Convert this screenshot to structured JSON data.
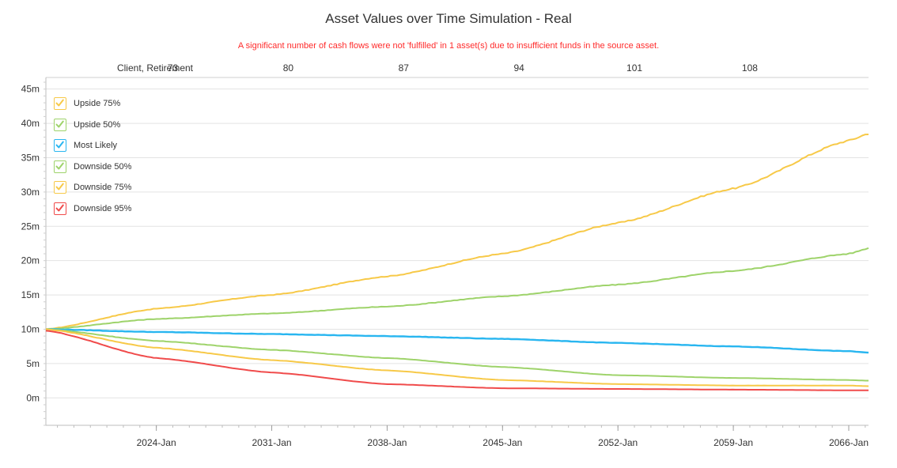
{
  "title": "Asset Values over Time Simulation - Real",
  "warning": "A significant number of cash flows were not 'fulfilled' in 1 asset(s) due to insufficient funds in the source asset.",
  "chart_data": {
    "type": "line",
    "top_axis": {
      "label": "Client, Retirement",
      "ticks": [
        {
          "year": 2025,
          "label": "73"
        },
        {
          "year": 2032,
          "label": "80"
        },
        {
          "year": 2039,
          "label": "87"
        },
        {
          "year": 2046,
          "label": "94"
        },
        {
          "year": 2053,
          "label": "101"
        },
        {
          "year": 2060,
          "label": "108"
        }
      ]
    },
    "x_ticks": [
      {
        "year": 2024,
        "label": "2024-Jan"
      },
      {
        "year": 2031,
        "label": "2031-Jan"
      },
      {
        "year": 2038,
        "label": "2038-Jan"
      },
      {
        "year": 2045,
        "label": "2045-Jan"
      },
      {
        "year": 2052,
        "label": "2052-Jan"
      },
      {
        "year": 2059,
        "label": "2059-Jan"
      },
      {
        "year": 2066,
        "label": "2066-Jan"
      }
    ],
    "xlim": [
      2017.3,
      2067.2
    ],
    "ylim": [
      -4,
      46
    ],
    "y_ticks": [
      {
        "value": 0,
        "label": "0m"
      },
      {
        "value": 5,
        "label": "5m"
      },
      {
        "value": 10,
        "label": "10m"
      },
      {
        "value": 15,
        "label": "15m"
      },
      {
        "value": 20,
        "label": "20m"
      },
      {
        "value": 25,
        "label": "25m"
      },
      {
        "value": 30,
        "label": "30m"
      },
      {
        "value": 35,
        "label": "35m"
      },
      {
        "value": 40,
        "label": "40m"
      },
      {
        "value": 45,
        "label": "45m"
      }
    ],
    "grid": "horizontal",
    "legend_position": "top-left",
    "series": [
      {
        "name": "Upside 75%",
        "color": "#f7c948",
        "x": [
          2017.3,
          2024,
          2031,
          2038,
          2045,
          2052,
          2059,
          2066,
          2067.2
        ],
        "y": [
          10,
          13,
          15,
          17.7,
          21,
          25.5,
          30.5,
          37.5,
          38.5
        ]
      },
      {
        "name": "Upside 50%",
        "color": "#9ed36a",
        "x": [
          2017.3,
          2024,
          2031,
          2038,
          2045,
          2052,
          2059,
          2066,
          2067.2
        ],
        "y": [
          10,
          11.5,
          12.3,
          13.3,
          14.8,
          16.5,
          18.5,
          21,
          21.8
        ]
      },
      {
        "name": "Most Likely",
        "color": "#29b6f0",
        "x": [
          2017.3,
          2024,
          2031,
          2038,
          2045,
          2052,
          2059,
          2066,
          2067.2
        ],
        "y": [
          10,
          9.6,
          9.3,
          9,
          8.6,
          8,
          7.5,
          6.8,
          6.6
        ]
      },
      {
        "name": "Downside 50%",
        "color": "#9ed36a",
        "x": [
          2017.3,
          2024,
          2031,
          2038,
          2045,
          2052,
          2059,
          2066,
          2067.2
        ],
        "y": [
          10,
          8.3,
          7,
          5.8,
          4.5,
          3.3,
          2.9,
          2.6,
          2.5
        ]
      },
      {
        "name": "Downside 75%",
        "color": "#f7c948",
        "x": [
          2017.3,
          2024,
          2031,
          2038,
          2045,
          2052,
          2059,
          2066,
          2067.2
        ],
        "y": [
          10,
          7.3,
          5.5,
          4,
          2.6,
          2,
          1.8,
          1.8,
          1.7
        ]
      },
      {
        "name": "Downside 95%",
        "color": "#f04b4b",
        "x": [
          2017.3,
          2024,
          2031,
          2038,
          2045,
          2052,
          2059,
          2066,
          2067.2
        ],
        "y": [
          9.8,
          5.8,
          3.7,
          2,
          1.4,
          1.3,
          1.2,
          1.1,
          1.1
        ]
      }
    ]
  }
}
